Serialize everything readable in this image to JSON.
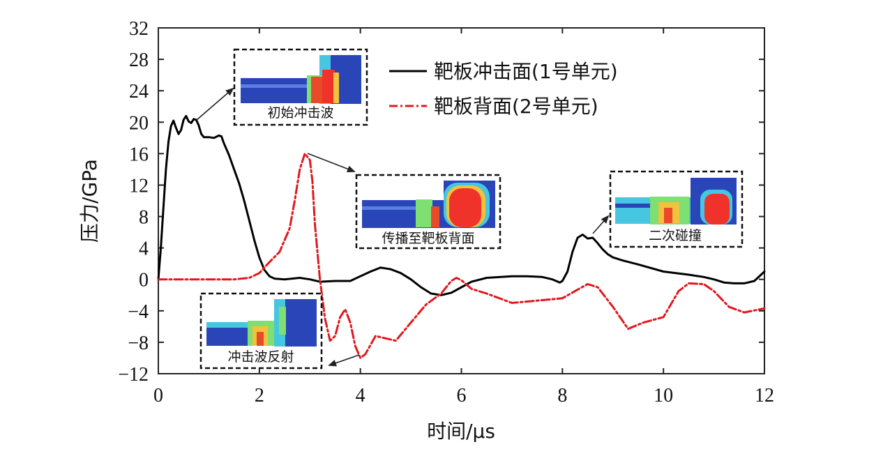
{
  "chart_data": {
    "type": "line",
    "xlabel": "时间/μs",
    "ylabel": "压力/GPa",
    "xlim": [
      0,
      12
    ],
    "ylim": [
      -12,
      32
    ],
    "xticks": [
      0,
      2,
      4,
      6,
      8,
      10,
      12
    ],
    "yticks": [
      -12,
      -8,
      -4,
      0,
      4,
      8,
      12,
      16,
      20,
      24,
      28,
      32
    ],
    "ytick_labels": [
      "−12",
      "−8",
      "−4",
      "0",
      "4",
      "8",
      "12",
      "16",
      "20",
      "24",
      "28",
      "32"
    ],
    "grid": false,
    "legend_position": "top-right",
    "series": [
      {
        "name": "靶板冲击面(1号单元)",
        "color": "#000000",
        "style": "solid",
        "x": [
          0,
          0.05,
          0.1,
          0.15,
          0.2,
          0.25,
          0.3,
          0.35,
          0.4,
          0.45,
          0.5,
          0.55,
          0.6,
          0.65,
          0.7,
          0.75,
          0.8,
          0.85,
          0.9,
          1.0,
          1.1,
          1.2,
          1.25,
          1.3,
          1.4,
          1.5,
          1.6,
          1.7,
          1.8,
          1.9,
          2.0,
          2.1,
          2.2,
          2.3,
          2.5,
          2.8,
          3.0,
          3.2,
          3.5,
          3.8,
          4.0,
          4.2,
          4.4,
          4.6,
          4.8,
          5.0,
          5.2,
          5.4,
          5.6,
          5.8,
          6.0,
          6.2,
          6.5,
          7.0,
          7.3,
          7.6,
          7.8,
          7.95,
          8.0,
          8.1,
          8.2,
          8.3,
          8.4,
          8.5,
          8.6,
          8.7,
          8.8,
          8.9,
          9.0,
          9.2,
          9.5,
          10.0,
          10.5,
          10.8,
          11.0,
          11.2,
          11.4,
          11.6,
          11.8,
          12.0
        ],
        "y": [
          0,
          4,
          9,
          14,
          17.5,
          19.5,
          20.2,
          19.3,
          18.5,
          19,
          20.3,
          20.8,
          20.1,
          19.9,
          20.4,
          20.3,
          19.6,
          18.5,
          18.1,
          18.1,
          18,
          18.3,
          18.2,
          17.3,
          15.8,
          14,
          12.2,
          10,
          7.5,
          5,
          2.8,
          1.2,
          0.4,
          0.1,
          0,
          0.2,
          0,
          -0.3,
          -0.2,
          -0.2,
          0.4,
          1,
          1.5,
          1.3,
          0.8,
          0,
          -1,
          -1.8,
          -2,
          -1.7,
          -1,
          -0.3,
          0.2,
          0.4,
          0.4,
          0.3,
          0,
          -0.4,
          -0.2,
          1,
          3.5,
          5.3,
          5.7,
          5.2,
          5.3,
          4.6,
          3.8,
          3.2,
          2.8,
          2.4,
          1.9,
          1,
          0.6,
          0.3,
          0,
          -0.4,
          -0.5,
          -0.5,
          -0.2,
          1
        ]
      },
      {
        "name": "靶板背面(2号单元)",
        "color": "#e0181e",
        "style": "dashdot",
        "x": [
          0,
          1.0,
          1.5,
          1.8,
          2.0,
          2.2,
          2.4,
          2.6,
          2.7,
          2.8,
          2.9,
          3.0,
          3.05,
          3.1,
          3.2,
          3.3,
          3.4,
          3.5,
          3.6,
          3.7,
          3.8,
          3.9,
          4.0,
          4.1,
          4.3,
          4.5,
          4.7,
          5.0,
          5.3,
          5.6,
          5.8,
          5.9,
          6.0,
          6.2,
          6.5,
          7.0,
          7.5,
          8.0,
          8.3,
          8.5,
          8.7,
          9.0,
          9.3,
          9.6,
          10.0,
          10.3,
          10.5,
          10.8,
          11.0,
          11.3,
          11.6,
          12.0
        ],
        "y": [
          0,
          0,
          0,
          0.2,
          0.8,
          2.2,
          3.5,
          6.5,
          10,
          14,
          16,
          15.2,
          12.5,
          7,
          0,
          -5,
          -7.8,
          -7.2,
          -4.8,
          -3.8,
          -5.5,
          -8.5,
          -10,
          -9.5,
          -7.2,
          -7.5,
          -7.8,
          -5.5,
          -3.2,
          -1.8,
          -0.2,
          0.2,
          -0.1,
          -1.2,
          -1.8,
          -3,
          -2.7,
          -2.4,
          -1.3,
          -0.6,
          -1,
          -3.5,
          -6.3,
          -5.5,
          -4.8,
          -1.5,
          -0.5,
          -0.6,
          -1.5,
          -3.5,
          -4.2,
          -3.7
        ]
      }
    ],
    "annotations": [
      {
        "label": "初始冲击波",
        "point": [
          0.75,
          20.5
        ]
      },
      {
        "label": "传播至靶板背面",
        "point": [
          2.95,
          16.2
        ]
      },
      {
        "label": "二次碰撞",
        "point": [
          8.6,
          6.2
        ]
      },
      {
        "label": "冲击波反射",
        "point": [
          4.05,
          -10
        ]
      }
    ]
  }
}
